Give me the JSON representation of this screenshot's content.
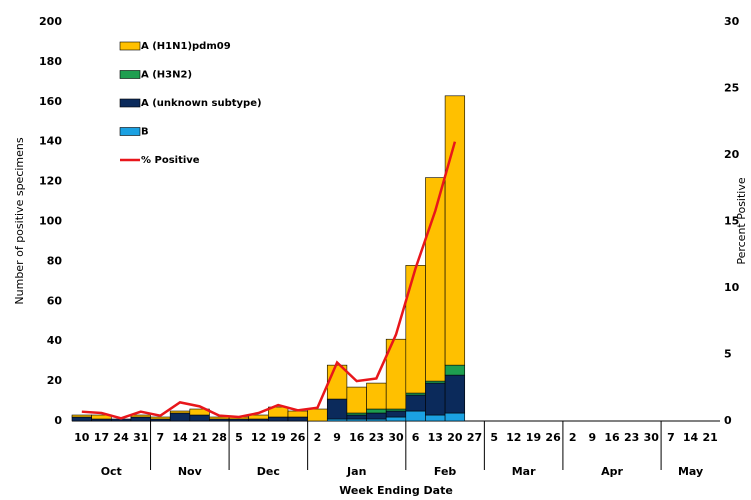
{
  "chart_data": {
    "type": "stacked_bar_line",
    "x_label": "Week Ending Date",
    "y_label": "Number of positive specimens",
    "y2_label": "Percent Positive",
    "categories": [
      "10",
      "17",
      "24",
      "31",
      "7",
      "14",
      "21",
      "28",
      "5",
      "12",
      "19",
      "26",
      "2",
      "9",
      "16",
      "23",
      "30",
      "6",
      "13",
      "20",
      "27",
      "5",
      "12",
      "19",
      "26",
      "2",
      "9",
      "16",
      "23",
      "30",
      "7",
      "14",
      "21"
    ],
    "month_groups": [
      {
        "label": "Oct",
        "weeks": 4
      },
      {
        "label": "Nov",
        "weeks": 4
      },
      {
        "label": "Dec",
        "weeks": 4
      },
      {
        "label": "Jan",
        "weeks": 5
      },
      {
        "label": "Feb",
        "weeks": 4
      },
      {
        "label": "Mar",
        "weeks": 4
      },
      {
        "label": "Apr",
        "weeks": 5
      },
      {
        "label": "May",
        "weeks": 3
      }
    ],
    "series": [
      {
        "name": "A (H1N1)pdm09",
        "color": "#FFC000",
        "values": [
          1,
          2,
          0,
          1,
          1,
          1,
          3,
          1,
          1,
          2,
          5,
          3,
          6,
          17,
          13,
          13,
          35,
          64,
          102,
          135,
          null,
          null,
          null,
          null,
          null,
          null,
          null,
          null,
          null,
          null,
          null,
          null,
          null
        ]
      },
      {
        "name": "A (H3N2)",
        "color": "#1E9E50",
        "values": [
          0,
          0,
          0,
          0,
          0,
          0,
          0,
          0,
          0,
          0,
          0,
          0,
          0,
          0,
          1,
          2,
          1,
          1,
          1,
          5,
          null,
          null,
          null,
          null,
          null,
          null,
          null,
          null,
          null,
          null,
          null,
          null,
          null
        ]
      },
      {
        "name": "A (unknown subtype)",
        "color": "#0B2A5B",
        "values": [
          2,
          1,
          1,
          2,
          1,
          4,
          3,
          1,
          1,
          1,
          2,
          2,
          0,
          10,
          2,
          3,
          3,
          8,
          16,
          19,
          null,
          null,
          null,
          null,
          null,
          null,
          null,
          null,
          null,
          null,
          null,
          null,
          null
        ]
      },
      {
        "name": "B",
        "color": "#1BA1E2",
        "values": [
          0,
          0,
          0,
          0,
          0,
          0,
          0,
          0,
          0,
          0,
          0,
          0,
          0,
          1,
          1,
          1,
          2,
          5,
          3,
          4,
          null,
          null,
          null,
          null,
          null,
          null,
          null,
          null,
          null,
          null,
          null,
          null,
          null
        ]
      },
      {
        "name": "% Positive",
        "color": "#E8161B",
        "axis": "y2",
        "values": [
          0.7,
          0.6,
          0.2,
          0.7,
          0.4,
          1.4,
          1.1,
          0.4,
          0.3,
          0.6,
          1.2,
          0.8,
          1.0,
          4.4,
          3.0,
          3.2,
          6.5,
          11.5,
          15.8,
          21.0,
          null,
          null,
          null,
          null,
          null,
          null,
          null,
          null,
          null,
          null,
          null,
          null,
          null
        ]
      }
    ],
    "ylim": [
      0,
      200
    ],
    "yticks": [
      0,
      20,
      40,
      60,
      80,
      100,
      120,
      140,
      160,
      180,
      200
    ],
    "y2lim": [
      0,
      30
    ],
    "y2ticks": [
      0,
      5,
      10,
      15,
      20,
      25,
      30
    ]
  }
}
